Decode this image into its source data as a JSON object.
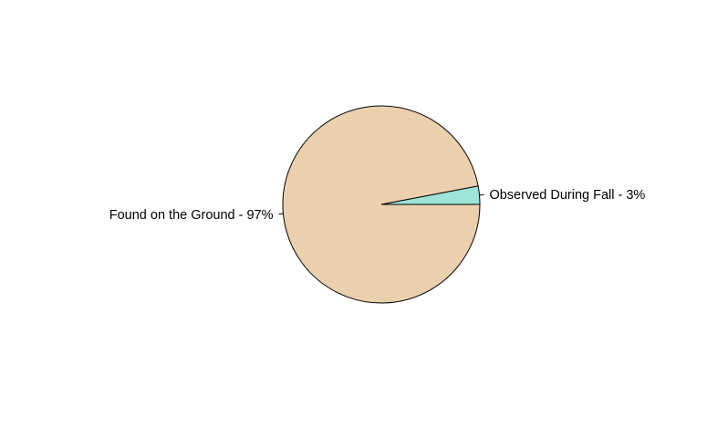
{
  "chart_data": {
    "type": "pie",
    "title": "",
    "start_angle_deg": 0,
    "direction": "counterclockwise",
    "slices": [
      {
        "label": "Observed During Fall - 3%",
        "value": 3,
        "color": "#9ee3d8"
      },
      {
        "label": "Found on the Ground - 97%",
        "value": 97,
        "color": "#ebd0ad"
      }
    ],
    "outline_color": "#000000",
    "legend": "none"
  }
}
